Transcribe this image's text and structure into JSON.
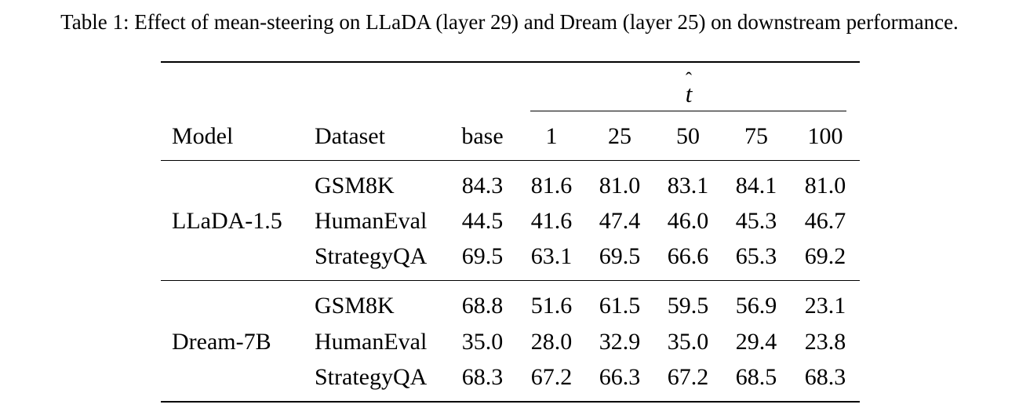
{
  "caption": "Table 1: Effect of mean-steering on LLaDA (layer 29) and Dream (layer 25) on downstream performance.",
  "header": {
    "model": "Model",
    "dataset": "Dataset",
    "base": "base",
    "group_label_symbol": "t",
    "group_label_accent": "ˆ",
    "t_values": [
      "1",
      "25",
      "50",
      "75",
      "100"
    ]
  },
  "groups": [
    {
      "model": "LLaDA-1.5",
      "rows": [
        {
          "dataset": "GSM8K",
          "base": "84.3",
          "values": [
            "81.6",
            "81.0",
            "83.1",
            "84.1",
            "81.0"
          ]
        },
        {
          "dataset": "HumanEval",
          "base": "44.5",
          "values": [
            "41.6",
            "47.4",
            "46.0",
            "45.3",
            "46.7"
          ]
        },
        {
          "dataset": "StrategyQA",
          "base": "69.5",
          "values": [
            "63.1",
            "69.5",
            "66.6",
            "65.3",
            "69.2"
          ]
        }
      ]
    },
    {
      "model": "Dream-7B",
      "rows": [
        {
          "dataset": "GSM8K",
          "base": "68.8",
          "values": [
            "51.6",
            "61.5",
            "59.5",
            "56.9",
            "23.1"
          ]
        },
        {
          "dataset": "HumanEval",
          "base": "35.0",
          "values": [
            "28.0",
            "32.9",
            "35.0",
            "29.4",
            "23.8"
          ]
        },
        {
          "dataset": "StrategyQA",
          "base": "68.3",
          "values": [
            "67.2",
            "66.3",
            "67.2",
            "68.5",
            "68.3"
          ]
        }
      ]
    }
  ]
}
